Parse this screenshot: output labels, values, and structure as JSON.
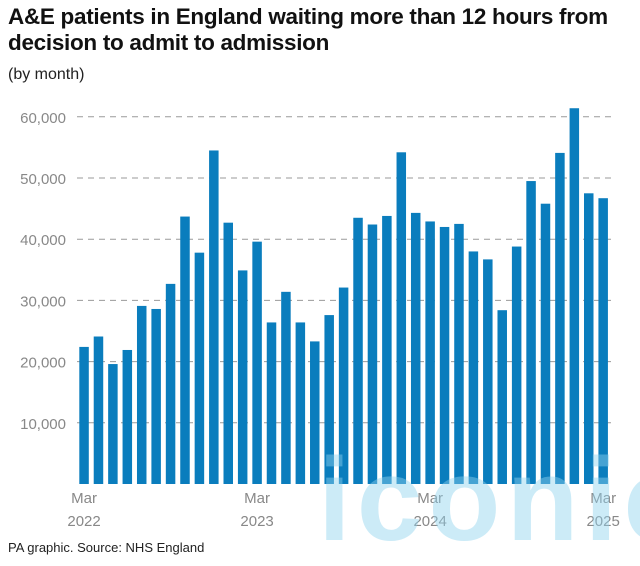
{
  "chart_data": {
    "type": "bar",
    "title": "A&E patients in England waiting more than 12 hours from decision to admit to admission",
    "subtitle": "(by month)",
    "source": "PA graphic. Source: NHS England",
    "xlabel": "",
    "ylabel": "",
    "ylim": [
      0,
      62000
    ],
    "yticks": [
      10000,
      20000,
      30000,
      40000,
      50000,
      60000
    ],
    "ytick_labels": [
      "10,000",
      "20,000",
      "30,000",
      "40,000",
      "50,000",
      "60,000"
    ],
    "grid": "horizontal dashed",
    "categories": [
      "Mar 2022",
      "Apr 2022",
      "May 2022",
      "Jun 2022",
      "Jul 2022",
      "Aug 2022",
      "Sep 2022",
      "Oct 2022",
      "Nov 2022",
      "Dec 2022",
      "Jan 2023",
      "Feb 2023",
      "Mar 2023",
      "Apr 2023",
      "May 2023",
      "Jun 2023",
      "Jul 2023",
      "Aug 2023",
      "Sep 2023",
      "Oct 2023",
      "Nov 2023",
      "Dec 2023",
      "Jan 2024",
      "Feb 2024",
      "Mar 2024",
      "Apr 2024",
      "May 2024",
      "Jun 2024",
      "Jul 2024",
      "Aug 2024",
      "Sep 2024",
      "Oct 2024",
      "Nov 2024",
      "Dec 2024",
      "Jan 2025",
      "Feb 2025",
      "Mar 2025"
    ],
    "values": [
      22400,
      24100,
      19600,
      21900,
      29100,
      28600,
      32700,
      43700,
      37800,
      54500,
      42700,
      34900,
      39600,
      26400,
      31400,
      26400,
      23300,
      27600,
      32100,
      43500,
      42400,
      43800,
      54200,
      44300,
      42900,
      42000,
      42500,
      38000,
      36700,
      28400,
      38800,
      49500,
      45800,
      54100,
      61400,
      47500,
      46700
    ],
    "xtick_labels": [
      {
        "index": 0,
        "month": "Mar",
        "year": "2022"
      },
      {
        "index": 12,
        "month": "Mar",
        "year": "2023"
      },
      {
        "index": 24,
        "month": "Mar",
        "year": "2024"
      },
      {
        "index": 36,
        "month": "Mar",
        "year": "2025"
      }
    ],
    "bar_color": "#0a7dbd",
    "grid_color": "#9a9a9a",
    "legend": "none"
  },
  "watermark": "iconic"
}
